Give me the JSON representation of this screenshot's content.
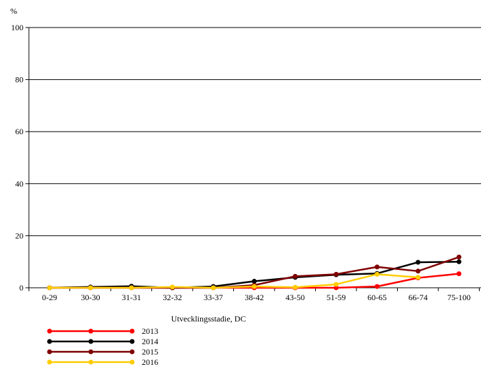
{
  "chart_data": {
    "type": "line",
    "ylabel": "%",
    "xlabel": "Utvecklingsstadie, DC",
    "ylim": [
      0,
      100
    ],
    "yticks": [
      0,
      20,
      40,
      60,
      80,
      100
    ],
    "grid": true,
    "legend_position": "bottom-left",
    "categories": [
      "0-29",
      "30-30",
      "31-31",
      "32-32",
      "33-37",
      "38-42",
      "43-50",
      "51-59",
      "60-65",
      "66-74",
      "75-100"
    ],
    "series": [
      {
        "name": "2013",
        "color": "#ff0000",
        "values": [
          0,
          0,
          0,
          0,
          0,
          0,
          0,
          0,
          0.5,
          3.8,
          5.4
        ]
      },
      {
        "name": "2014",
        "color": "#000000",
        "values": [
          0,
          0.3,
          0.6,
          0,
          0.5,
          2.5,
          4.0,
          5.0,
          5.5,
          9.8,
          10.0
        ]
      },
      {
        "name": "2015",
        "color": "#7f0000",
        "values": [
          0,
          0,
          0,
          0,
          0,
          1.0,
          4.4,
          5.2,
          8.0,
          6.4,
          11.8
        ]
      },
      {
        "name": "2016",
        "color": "#ffcc00",
        "values": [
          0,
          0,
          0,
          0.3,
          0,
          0.5,
          0.2,
          1.3,
          5.2,
          4.0,
          null
        ]
      }
    ]
  }
}
